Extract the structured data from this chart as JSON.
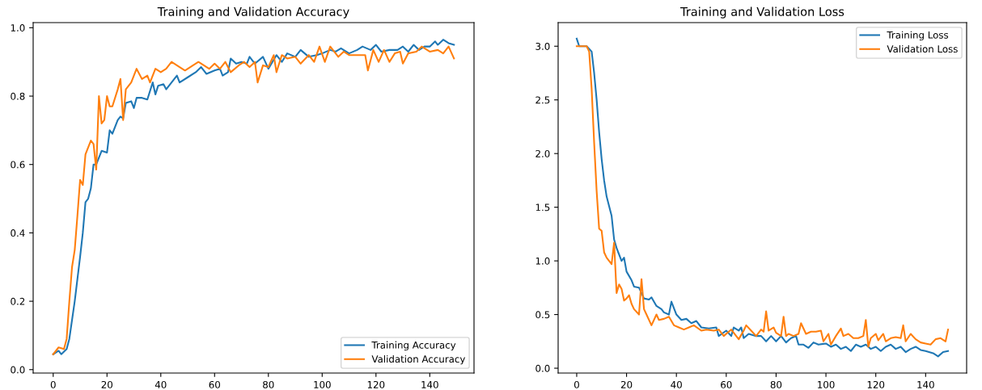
{
  "chart_data": [
    {
      "type": "line",
      "title": "Training and Validation Accuracy",
      "xlim": [
        -7.45,
        156.45
      ],
      "xticks": [
        0,
        20,
        40,
        60,
        80,
        100,
        120,
        140
      ],
      "ylim": [
        -0.01,
        1.015
      ],
      "yticks": [
        {
          "value": 0,
          "label": "0.0"
        },
        {
          "value": 0.2,
          "label": "0.2"
        },
        {
          "value": 0.4,
          "label": "0.4"
        },
        {
          "value": 0.6,
          "label": "0.6"
        },
        {
          "value": 0.8,
          "label": "0.8"
        },
        {
          "value": 1,
          "label": "1.0"
        }
      ],
      "legend": "bottom right",
      "grid": false,
      "series": [
        {
          "name": "Training Accuracy",
          "color": "#1f77b4",
          "x": [
            0,
            2,
            3,
            5,
            6,
            8,
            10,
            11,
            12,
            13,
            14,
            15,
            16,
            18,
            20,
            21,
            22,
            24,
            25,
            26,
            27,
            29,
            30,
            31,
            33,
            35,
            37,
            38,
            39,
            41,
            42,
            44,
            46,
            47,
            50,
            53,
            55,
            57,
            60,
            62,
            63,
            65,
            66,
            68,
            70,
            72,
            73,
            75,
            78,
            80,
            83,
            85,
            87,
            90,
            92,
            95,
            98,
            100,
            103,
            105,
            107,
            110,
            113,
            115,
            118,
            120,
            122,
            125,
            128,
            130,
            132,
            134,
            136,
            138,
            140,
            142,
            143,
            145,
            147,
            149
          ],
          "values": [
            0.045,
            0.055,
            0.045,
            0.06,
            0.09,
            0.2,
            0.33,
            0.4,
            0.49,
            0.5,
            0.53,
            0.6,
            0.6,
            0.64,
            0.635,
            0.7,
            0.69,
            0.73,
            0.74,
            0.735,
            0.78,
            0.785,
            0.765,
            0.795,
            0.795,
            0.79,
            0.84,
            0.805,
            0.83,
            0.835,
            0.82,
            0.84,
            0.86,
            0.84,
            0.855,
            0.87,
            0.885,
            0.865,
            0.875,
            0.88,
            0.86,
            0.87,
            0.91,
            0.895,
            0.9,
            0.895,
            0.915,
            0.895,
            0.915,
            0.88,
            0.92,
            0.9,
            0.925,
            0.915,
            0.935,
            0.915,
            0.92,
            0.925,
            0.935,
            0.93,
            0.94,
            0.925,
            0.935,
            0.945,
            0.935,
            0.95,
            0.93,
            0.935,
            0.935,
            0.945,
            0.93,
            0.95,
            0.935,
            0.945,
            0.945,
            0.96,
            0.95,
            0.965,
            0.955,
            0.95
          ]
        },
        {
          "name": "Validation Accuracy",
          "color": "#ff7f0e",
          "x": [
            0,
            2,
            4,
            5,
            6,
            7,
            8,
            9,
            10,
            11,
            12,
            14,
            15,
            16,
            17,
            18,
            19,
            20,
            21,
            22,
            24,
            25,
            26,
            27,
            29,
            31,
            33,
            35,
            36,
            38,
            40,
            42,
            44,
            47,
            49,
            52,
            54,
            56,
            58,
            60,
            62,
            64,
            66,
            69,
            71,
            73,
            75,
            76,
            78,
            80,
            82,
            83,
            85,
            87,
            90,
            92,
            95,
            97,
            99,
            101,
            103,
            106,
            108,
            110,
            113,
            116,
            117,
            119,
            121,
            123,
            125,
            127,
            129,
            130,
            132,
            135,
            137,
            140,
            143,
            145,
            147,
            149
          ],
          "values": [
            0.045,
            0.065,
            0.06,
            0.09,
            0.2,
            0.3,
            0.35,
            0.45,
            0.555,
            0.54,
            0.63,
            0.67,
            0.66,
            0.585,
            0.8,
            0.72,
            0.73,
            0.8,
            0.77,
            0.77,
            0.82,
            0.85,
            0.73,
            0.82,
            0.84,
            0.88,
            0.85,
            0.86,
            0.84,
            0.88,
            0.87,
            0.88,
            0.9,
            0.885,
            0.875,
            0.89,
            0.9,
            0.89,
            0.88,
            0.895,
            0.88,
            0.9,
            0.87,
            0.89,
            0.9,
            0.885,
            0.9,
            0.84,
            0.89,
            0.885,
            0.92,
            0.87,
            0.92,
            0.91,
            0.915,
            0.895,
            0.92,
            0.9,
            0.945,
            0.9,
            0.945,
            0.915,
            0.93,
            0.92,
            0.92,
            0.92,
            0.875,
            0.935,
            0.9,
            0.935,
            0.9,
            0.925,
            0.93,
            0.895,
            0.925,
            0.93,
            0.945,
            0.93,
            0.935,
            0.925,
            0.945,
            0.91
          ]
        }
      ]
    },
    {
      "type": "line",
      "title": "Training and Validation Loss",
      "xlim": [
        -7.45,
        156.45
      ],
      "xticks": [
        0,
        20,
        40,
        60,
        80,
        100,
        120,
        140
      ],
      "ylim": [
        -0.045,
        3.22
      ],
      "yticks": [
        {
          "value": 0,
          "label": "0.0"
        },
        {
          "value": 0.5,
          "label": "0.5"
        },
        {
          "value": 1,
          "label": "1.0"
        },
        {
          "value": 1.5,
          "label": "1.5"
        },
        {
          "value": 2,
          "label": "2.0"
        },
        {
          "value": 2.5,
          "label": "2.5"
        },
        {
          "value": 3,
          "label": "3.0"
        }
      ],
      "legend": "top right",
      "grid": false,
      "series": [
        {
          "name": "Training Loss",
          "color": "#1f77b4",
          "x": [
            0,
            1,
            4,
            6,
            7,
            8,
            9,
            10,
            11,
            12,
            14,
            15,
            16,
            18,
            19,
            20,
            22,
            23,
            25,
            27,
            29,
            30,
            32,
            34,
            35,
            37,
            38,
            40,
            42,
            44,
            46,
            48,
            50,
            53,
            56,
            57,
            60,
            62,
            63,
            65,
            66,
            67,
            69,
            72,
            74,
            76,
            78,
            80,
            82,
            84,
            86,
            88,
            89,
            91,
            93,
            95,
            97,
            100,
            102,
            104,
            106,
            108,
            110,
            112,
            114,
            116,
            118,
            120,
            122,
            124,
            126,
            128,
            130,
            132,
            134,
            136,
            138,
            140,
            143,
            145,
            147,
            149
          ],
          "values": [
            3.07,
            3.0,
            3.0,
            2.95,
            2.75,
            2.5,
            2.2,
            1.95,
            1.75,
            1.6,
            1.42,
            1.2,
            1.12,
            1.0,
            1.03,
            0.9,
            0.82,
            0.76,
            0.75,
            0.65,
            0.64,
            0.66,
            0.58,
            0.55,
            0.52,
            0.5,
            0.62,
            0.5,
            0.45,
            0.46,
            0.42,
            0.44,
            0.38,
            0.37,
            0.38,
            0.3,
            0.35,
            0.3,
            0.38,
            0.35,
            0.38,
            0.28,
            0.32,
            0.3,
            0.3,
            0.25,
            0.3,
            0.25,
            0.3,
            0.24,
            0.28,
            0.3,
            0.22,
            0.22,
            0.19,
            0.24,
            0.22,
            0.23,
            0.2,
            0.22,
            0.18,
            0.2,
            0.16,
            0.22,
            0.2,
            0.22,
            0.18,
            0.2,
            0.16,
            0.2,
            0.22,
            0.18,
            0.2,
            0.15,
            0.18,
            0.2,
            0.17,
            0.16,
            0.14,
            0.11,
            0.15,
            0.16
          ]
        },
        {
          "name": "Validation Loss",
          "color": "#ff7f0e",
          "x": [
            0,
            4,
            5,
            6,
            7,
            8,
            9,
            10,
            11,
            12,
            13,
            14,
            15,
            16,
            17,
            18,
            19,
            20,
            21,
            22,
            23,
            25,
            26,
            27,
            28,
            30,
            32,
            33,
            35,
            37,
            39,
            41,
            43,
            45,
            47,
            50,
            52,
            55,
            57,
            59,
            61,
            62,
            64,
            65,
            67,
            68,
            70,
            72,
            74,
            75,
            76,
            77,
            79,
            80,
            82,
            83,
            84,
            85,
            87,
            89,
            90,
            92,
            94,
            96,
            98,
            99,
            101,
            102,
            104,
            106,
            107,
            109,
            111,
            113,
            115,
            116,
            117,
            118,
            120,
            121,
            123,
            124,
            126,
            128,
            130,
            131,
            132,
            134,
            136,
            138,
            140,
            142,
            144,
            146,
            148,
            149
          ],
          "values": [
            3.0,
            3.0,
            2.95,
            2.6,
            2.1,
            1.65,
            1.3,
            1.28,
            1.08,
            1.03,
            1.0,
            0.97,
            1.17,
            0.7,
            0.78,
            0.74,
            0.63,
            0.65,
            0.68,
            0.6,
            0.55,
            0.5,
            0.83,
            0.55,
            0.5,
            0.4,
            0.5,
            0.45,
            0.46,
            0.48,
            0.4,
            0.38,
            0.36,
            0.38,
            0.4,
            0.35,
            0.36,
            0.35,
            0.36,
            0.3,
            0.34,
            0.36,
            0.3,
            0.27,
            0.35,
            0.4,
            0.35,
            0.3,
            0.36,
            0.34,
            0.53,
            0.35,
            0.38,
            0.33,
            0.3,
            0.48,
            0.3,
            0.32,
            0.3,
            0.32,
            0.42,
            0.32,
            0.34,
            0.34,
            0.35,
            0.25,
            0.32,
            0.22,
            0.3,
            0.37,
            0.3,
            0.32,
            0.28,
            0.28,
            0.3,
            0.45,
            0.2,
            0.28,
            0.32,
            0.26,
            0.32,
            0.25,
            0.28,
            0.29,
            0.28,
            0.4,
            0.25,
            0.32,
            0.27,
            0.24,
            0.23,
            0.22,
            0.27,
            0.28,
            0.25,
            0.36
          ]
        }
      ]
    }
  ]
}
